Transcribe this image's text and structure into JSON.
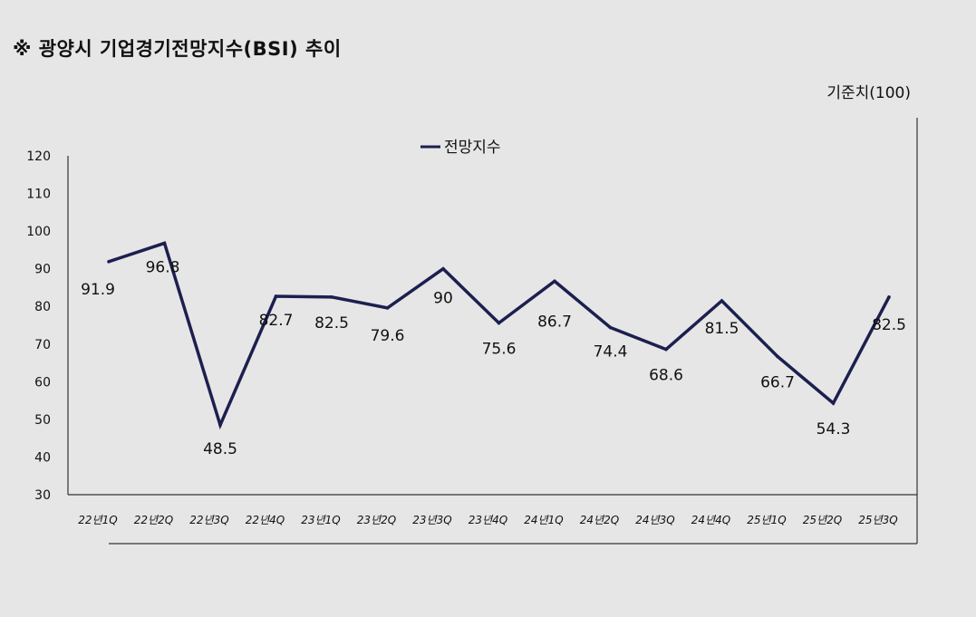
{
  "title": "※ 광양시 기업경기전망지수(BSI) 추이",
  "baseline_note": "기준치(100)",
  "colors": {
    "series": "#1c1f4f",
    "axis": "#333333",
    "background": "#e6e6e6"
  },
  "chart_data": {
    "type": "line",
    "title": "※ 광양시 기업경기전망지수(BSI) 추이",
    "xlabel": "",
    "ylabel": "",
    "ylim": [
      30,
      120
    ],
    "yticks": [
      30,
      40,
      50,
      60,
      70,
      80,
      90,
      100,
      110,
      120
    ],
    "grid": false,
    "legend": "top-center",
    "categories": [
      "22년1Q",
      "22년2Q",
      "22년3Q",
      "22년4Q",
      "23년1Q",
      "23년2Q",
      "23년3Q",
      "23년4Q",
      "24년1Q",
      "24년2Q",
      "24년3Q",
      "24년4Q",
      "25년1Q",
      "25년2Q",
      "25년3Q"
    ],
    "series": [
      {
        "name": "전망지수",
        "values": [
          91.9,
          96.8,
          48.5,
          82.7,
          82.5,
          79.6,
          90,
          75.6,
          86.7,
          74.4,
          68.6,
          81.5,
          66.7,
          54.3,
          82.5
        ],
        "labels": [
          "91.9",
          "96.8",
          "48.5",
          "82.7",
          "82.5",
          "79.6",
          "90",
          "75.6",
          "86.7",
          "74.4",
          "68.6",
          "81.5",
          "66.7",
          "54.3",
          "82.5"
        ]
      }
    ]
  }
}
